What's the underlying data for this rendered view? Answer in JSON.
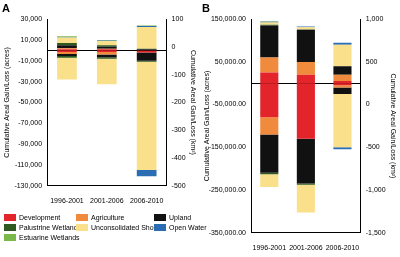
{
  "chart_data": [
    {
      "type": "bar",
      "title": "A",
      "stacked": true,
      "grid": false,
      "legend": "bottom",
      "y_label": "Cumulative Areal Gain/Loss (acres)",
      "y2_label": "Cumulative Areal Gain/Loss (km²)",
      "categories": [
        "1996-2001",
        "2001-2006",
        "2006-2010"
      ],
      "ylim": [
        -130000,
        30000
      ],
      "yticks": [
        {
          "value": -130000,
          "label": "-130,000"
        },
        {
          "value": -110000,
          "label": "-110,000"
        },
        {
          "value": -90000,
          "label": "-90,000"
        },
        {
          "value": -70000,
          "label": "-70,000"
        },
        {
          "value": -50000,
          "label": "-50,000"
        },
        {
          "value": -30000,
          "label": "-30,000"
        },
        {
          "value": -10000,
          "label": "-10,000"
        },
        {
          "value": 10000,
          "label": "10,000"
        },
        {
          "value": 30000,
          "label": "30,000"
        }
      ],
      "y2lim": [
        -500,
        100
      ],
      "y2ticks": [
        -500,
        -400,
        -300,
        -200,
        -100,
        0,
        100
      ],
      "series": [
        {
          "name": "Development",
          "color": "#e3242b",
          "values": [
            1000,
            1000,
            0
          ]
        },
        {
          "name": "Agriculture",
          "color": "#f08a3c",
          "values": [
            1000,
            500,
            0
          ]
        },
        {
          "name": "Upland",
          "color": "#111111",
          "values": [
            3000,
            2000,
            1000
          ]
        },
        {
          "name": "Palustrine Wetlands",
          "color": "#2f5a1f",
          "values": [
            2000,
            1500,
            500
          ]
        },
        {
          "name": "Unconsolidated Shore",
          "color": "#fbe08c",
          "values": [
            5500,
            4000,
            21000
          ]
        },
        {
          "name": "Open Water",
          "color": "#2a6db3",
          "values": [
            500,
            500,
            1000
          ]
        },
        {
          "name": "Estuarine Wetlands",
          "color": "#7bb84a",
          "values": [
            500,
            500,
            500
          ]
        },
        {
          "name": "Development",
          "color": "#e3242b",
          "values": [
            -1500,
            -1500,
            -2000
          ]
        },
        {
          "name": "Agriculture",
          "color": "#f08a3c",
          "values": [
            -2000,
            -2500,
            0
          ]
        },
        {
          "name": "Upland",
          "color": "#111111",
          "values": [
            -2000,
            -2500,
            -8000
          ]
        },
        {
          "name": "Palustrine Wetlands",
          "color": "#2f5a1f",
          "values": [
            -1500,
            -1500,
            -1000
          ]
        },
        {
          "name": "Unconsolidated Shore",
          "color": "#fbe08c",
          "values": [
            -21000,
            -24500,
            -104000
          ]
        },
        {
          "name": "Open Water",
          "color": "#2a6db3",
          "values": [
            0,
            0,
            -6000
          ]
        },
        {
          "name": "Estuarine Wetlands",
          "color": "#7bb84a",
          "values": [
            0,
            0,
            0
          ]
        }
      ]
    },
    {
      "type": "bar",
      "title": "B",
      "stacked": true,
      "grid": false,
      "y_label": "Cumulative Areal Gain/Loss (acres)",
      "y2_label": "Cumulative Areal Gain/Loss (km²)",
      "categories": [
        "1996-2001",
        "2001-2006",
        "2006-2010"
      ],
      "ylim": [
        -350000,
        150000
      ],
      "yticks": [
        {
          "value": -350000,
          "label": "-350,000.00"
        },
        {
          "value": -250000,
          "label": "-250,000.00"
        },
        {
          "value": -150000,
          "label": "-150,000.00"
        },
        {
          "value": -50000,
          "label": "-50,000.00"
        },
        {
          "value": 50000,
          "label": "50,000.00"
        },
        {
          "value": 150000,
          "label": "150,000.00"
        }
      ],
      "y2lim": [
        -1500,
        1000
      ],
      "y2ticks": [
        {
          "value": -1500,
          "label": "-1,500"
        },
        {
          "value": -1000,
          "label": "-1,000"
        },
        -500,
        0,
        500,
        {
          "value": 1000,
          "label": "1,000"
        }
      ],
      "series": [
        {
          "name": "Development",
          "color": "#e3242b",
          "values": [
            25000,
            20000,
            5000
          ]
        },
        {
          "name": "Agriculture",
          "color": "#f08a3c",
          "values": [
            35000,
            30000,
            15000
          ]
        },
        {
          "name": "Upland",
          "color": "#111111",
          "values": [
            75000,
            75000,
            20000
          ]
        },
        {
          "name": "Palustrine Wetlands",
          "color": "#2f5a1f",
          "values": [
            2000,
            1000,
            0
          ]
        },
        {
          "name": "Unconsolidated Shore",
          "color": "#fbe08c",
          "values": [
            5000,
            5000,
            50000
          ]
        },
        {
          "name": "Open Water",
          "color": "#2a6db3",
          "values": [
            2000,
            2000,
            5000
          ]
        },
        {
          "name": "Estuarine Wetlands",
          "color": "#7bb84a",
          "values": [
            1000,
            0,
            0
          ]
        },
        {
          "name": "Development",
          "color": "#e3242b",
          "values": [
            -80000,
            -130000,
            -5000
          ]
        },
        {
          "name": "Agriculture",
          "color": "#f08a3c",
          "values": [
            -40000,
            0,
            -5000
          ]
        },
        {
          "name": "Upland",
          "color": "#111111",
          "values": [
            -90000,
            -105000,
            -15000
          ]
        },
        {
          "name": "Palustrine Wetlands",
          "color": "#2f5a1f",
          "values": [
            -3000,
            -3000,
            0
          ]
        },
        {
          "name": "Unconsolidated Shore",
          "color": "#fbe08c",
          "values": [
            -30000,
            -65000,
            -125000
          ]
        },
        {
          "name": "Open Water",
          "color": "#2a6db3",
          "values": [
            0,
            0,
            -5000
          ]
        },
        {
          "name": "Estuarine Wetlands",
          "color": "#7bb84a",
          "values": [
            0,
            0,
            0
          ]
        }
      ]
    }
  ]
}
